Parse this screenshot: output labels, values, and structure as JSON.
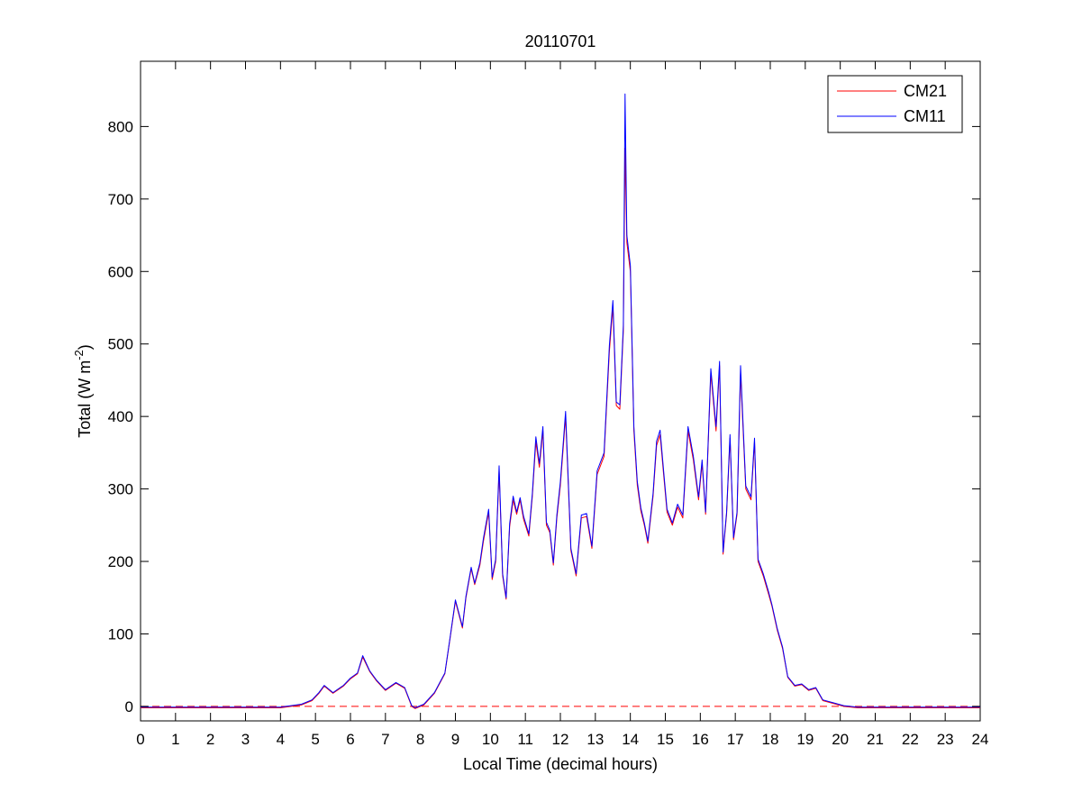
{
  "chart_data": {
    "type": "line",
    "title": "20110701",
    "xlabel": "Local Time (decimal hours)",
    "ylabel": "Total (W m",
    "ylabel_superscript": "-2",
    "ylabel_suffix": ")",
    "xlim": [
      0,
      24
    ],
    "ylim": [
      -20,
      890
    ],
    "xticks": [
      0,
      1,
      2,
      3,
      4,
      5,
      6,
      7,
      8,
      9,
      10,
      11,
      12,
      13,
      14,
      15,
      16,
      17,
      18,
      19,
      20,
      21,
      22,
      23,
      24
    ],
    "yticks": [
      0,
      100,
      200,
      300,
      400,
      500,
      600,
      700,
      800
    ],
    "grid": false,
    "legend_position": "top-right",
    "reference_line": {
      "y": 0,
      "style": "dashed",
      "color": "#ff0000"
    },
    "series": [
      {
        "name": "CM21",
        "color": "#ff0000",
        "points": [
          [
            0,
            -2
          ],
          [
            3,
            -2
          ],
          [
            4,
            -2
          ],
          [
            4.6,
            2
          ],
          [
            4.9,
            8
          ],
          [
            5.1,
            18
          ],
          [
            5.25,
            28
          ],
          [
            5.5,
            18
          ],
          [
            5.8,
            28
          ],
          [
            6.0,
            38
          ],
          [
            6.2,
            45
          ],
          [
            6.35,
            68
          ],
          [
            6.55,
            48
          ],
          [
            6.75,
            35
          ],
          [
            7.0,
            22
          ],
          [
            7.3,
            32
          ],
          [
            7.55,
            25
          ],
          [
            7.75,
            0
          ],
          [
            7.85,
            -3
          ],
          [
            8.1,
            2
          ],
          [
            8.4,
            18
          ],
          [
            8.7,
            45
          ],
          [
            8.85,
            95
          ],
          [
            9.0,
            145
          ],
          [
            9.2,
            108
          ],
          [
            9.3,
            150
          ],
          [
            9.45,
            190
          ],
          [
            9.55,
            168
          ],
          [
            9.7,
            195
          ],
          [
            9.8,
            228
          ],
          [
            9.95,
            268
          ],
          [
            10.05,
            175
          ],
          [
            10.15,
            200
          ],
          [
            10.25,
            325
          ],
          [
            10.35,
            180
          ],
          [
            10.45,
            148
          ],
          [
            10.55,
            248
          ],
          [
            10.65,
            285
          ],
          [
            10.75,
            265
          ],
          [
            10.85,
            285
          ],
          [
            10.95,
            258
          ],
          [
            11.1,
            235
          ],
          [
            11.2,
            290
          ],
          [
            11.3,
            365
          ],
          [
            11.4,
            330
          ],
          [
            11.5,
            380
          ],
          [
            11.6,
            250
          ],
          [
            11.7,
            240
          ],
          [
            11.8,
            195
          ],
          [
            11.9,
            260
          ],
          [
            12.0,
            305
          ],
          [
            12.15,
            400
          ],
          [
            12.3,
            215
          ],
          [
            12.45,
            180
          ],
          [
            12.6,
            260
          ],
          [
            12.75,
            262
          ],
          [
            12.9,
            218
          ],
          [
            13.05,
            320
          ],
          [
            13.25,
            345
          ],
          [
            13.4,
            490
          ],
          [
            13.5,
            552
          ],
          [
            13.6,
            415
          ],
          [
            13.7,
            410
          ],
          [
            13.8,
            518
          ],
          [
            13.85,
            770
          ],
          [
            13.9,
            640
          ],
          [
            14.0,
            600
          ],
          [
            14.1,
            380
          ],
          [
            14.2,
            305
          ],
          [
            14.3,
            270
          ],
          [
            14.4,
            250
          ],
          [
            14.5,
            225
          ],
          [
            14.65,
            290
          ],
          [
            14.75,
            360
          ],
          [
            14.85,
            375
          ],
          [
            14.95,
            320
          ],
          [
            15.05,
            268
          ],
          [
            15.2,
            250
          ],
          [
            15.35,
            275
          ],
          [
            15.5,
            260
          ],
          [
            15.65,
            380
          ],
          [
            15.8,
            340
          ],
          [
            15.95,
            285
          ],
          [
            16.05,
            335
          ],
          [
            16.15,
            265
          ],
          [
            16.3,
            460
          ],
          [
            16.45,
            380
          ],
          [
            16.55,
            470
          ],
          [
            16.65,
            210
          ],
          [
            16.75,
            265
          ],
          [
            16.85,
            370
          ],
          [
            16.95,
            230
          ],
          [
            17.05,
            265
          ],
          [
            17.15,
            460
          ],
          [
            17.3,
            300
          ],
          [
            17.45,
            285
          ],
          [
            17.55,
            365
          ],
          [
            17.65,
            200
          ],
          [
            17.8,
            180
          ],
          [
            17.95,
            155
          ],
          [
            18.05,
            138
          ],
          [
            18.2,
            105
          ],
          [
            18.35,
            80
          ],
          [
            18.5,
            40
          ],
          [
            18.7,
            28
          ],
          [
            18.9,
            30
          ],
          [
            19.1,
            22
          ],
          [
            19.3,
            25
          ],
          [
            19.5,
            8
          ],
          [
            19.8,
            4
          ],
          [
            20.1,
            0
          ],
          [
            20.5,
            -2
          ],
          [
            21,
            -2
          ],
          [
            24,
            -2
          ]
        ]
      },
      {
        "name": "CM11",
        "color": "#0000ff",
        "points": [
          [
            0,
            -1
          ],
          [
            3,
            -1
          ],
          [
            4,
            -1
          ],
          [
            4.6,
            3
          ],
          [
            4.9,
            9
          ],
          [
            5.1,
            19
          ],
          [
            5.25,
            29
          ],
          [
            5.5,
            19
          ],
          [
            5.8,
            29
          ],
          [
            6.0,
            39
          ],
          [
            6.2,
            46
          ],
          [
            6.35,
            70
          ],
          [
            6.55,
            49
          ],
          [
            6.75,
            36
          ],
          [
            7.0,
            23
          ],
          [
            7.3,
            33
          ],
          [
            7.55,
            26
          ],
          [
            7.75,
            1
          ],
          [
            7.85,
            -2
          ],
          [
            8.1,
            3
          ],
          [
            8.4,
            19
          ],
          [
            8.7,
            46
          ],
          [
            8.85,
            96
          ],
          [
            9.0,
            147
          ],
          [
            9.2,
            110
          ],
          [
            9.3,
            152
          ],
          [
            9.45,
            192
          ],
          [
            9.55,
            170
          ],
          [
            9.7,
            198
          ],
          [
            9.8,
            232
          ],
          [
            9.95,
            272
          ],
          [
            10.05,
            178
          ],
          [
            10.15,
            203
          ],
          [
            10.25,
            332
          ],
          [
            10.35,
            183
          ],
          [
            10.45,
            150
          ],
          [
            10.55,
            252
          ],
          [
            10.65,
            290
          ],
          [
            10.75,
            268
          ],
          [
            10.85,
            288
          ],
          [
            10.95,
            262
          ],
          [
            11.1,
            238
          ],
          [
            11.2,
            294
          ],
          [
            11.3,
            372
          ],
          [
            11.4,
            335
          ],
          [
            11.5,
            386
          ],
          [
            11.6,
            254
          ],
          [
            11.7,
            243
          ],
          [
            11.8,
            198
          ],
          [
            11.9,
            264
          ],
          [
            12.0,
            310
          ],
          [
            12.15,
            407
          ],
          [
            12.3,
            218
          ],
          [
            12.45,
            183
          ],
          [
            12.6,
            264
          ],
          [
            12.75,
            266
          ],
          [
            12.9,
            221
          ],
          [
            13.05,
            325
          ],
          [
            13.25,
            350
          ],
          [
            13.4,
            498
          ],
          [
            13.5,
            560
          ],
          [
            13.6,
            420
          ],
          [
            13.7,
            416
          ],
          [
            13.8,
            525
          ],
          [
            13.85,
            845
          ],
          [
            13.9,
            650
          ],
          [
            14.0,
            608
          ],
          [
            14.1,
            386
          ],
          [
            14.2,
            310
          ],
          [
            14.3,
            274
          ],
          [
            14.4,
            253
          ],
          [
            14.5,
            228
          ],
          [
            14.65,
            294
          ],
          [
            14.75,
            366
          ],
          [
            14.85,
            381
          ],
          [
            14.95,
            325
          ],
          [
            15.05,
            272
          ],
          [
            15.2,
            253
          ],
          [
            15.35,
            279
          ],
          [
            15.5,
            264
          ],
          [
            15.65,
            386
          ],
          [
            15.8,
            345
          ],
          [
            15.95,
            289
          ],
          [
            16.05,
            340
          ],
          [
            16.15,
            268
          ],
          [
            16.3,
            466
          ],
          [
            16.45,
            386
          ],
          [
            16.55,
            476
          ],
          [
            16.65,
            213
          ],
          [
            16.75,
            268
          ],
          [
            16.85,
            375
          ],
          [
            16.95,
            233
          ],
          [
            17.05,
            268
          ],
          [
            17.15,
            470
          ],
          [
            17.3,
            304
          ],
          [
            17.45,
            289
          ],
          [
            17.55,
            370
          ],
          [
            17.65,
            203
          ],
          [
            17.8,
            183
          ],
          [
            17.95,
            158
          ],
          [
            18.05,
            140
          ],
          [
            18.2,
            107
          ],
          [
            18.35,
            82
          ],
          [
            18.5,
            41
          ],
          [
            18.7,
            29
          ],
          [
            18.9,
            31
          ],
          [
            19.1,
            23
          ],
          [
            19.3,
            26
          ],
          [
            19.5,
            9
          ],
          [
            19.8,
            5
          ],
          [
            20.1,
            1
          ],
          [
            20.5,
            -1
          ],
          [
            21,
            -1
          ],
          [
            24,
            -1
          ]
        ]
      }
    ]
  }
}
